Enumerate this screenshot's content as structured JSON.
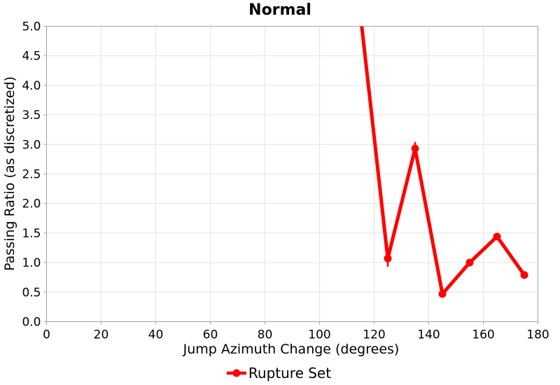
{
  "chart_data": {
    "type": "line",
    "title": "Normal",
    "xlabel": "Jump Azimuth Change (degrees)",
    "ylabel": "Passing Ratio (as discretized)",
    "xlim": [
      0,
      180
    ],
    "ylim": [
      0,
      5
    ],
    "x_ticks": [
      "0",
      "20",
      "40",
      "60",
      "80",
      "100",
      "120",
      "140",
      "160",
      "180"
    ],
    "y_ticks": [
      "0.0",
      "0.5",
      "1.0",
      "1.5",
      "2.0",
      "2.5",
      "3.0",
      "3.5",
      "4.0",
      "4.5",
      "5.0"
    ],
    "grid": true,
    "legend_position": "bottom-center",
    "series": [
      {
        "name": "Rupture Set",
        "color": "#ff0000",
        "marker": "circle",
        "points": [
          {
            "x": 115,
            "y": 5.19,
            "clipped": true
          },
          {
            "x": 125,
            "y": 1.07,
            "err_low": 0.94
          },
          {
            "x": 135,
            "y": 2.93,
            "err_high": 3.03
          },
          {
            "x": 145,
            "y": 0.47
          },
          {
            "x": 155,
            "y": 1.0
          },
          {
            "x": 165,
            "y": 1.44
          },
          {
            "x": 175,
            "y": 0.79
          }
        ]
      }
    ]
  },
  "colors": {
    "series": "#ff0000",
    "grid": "#e4e4e4",
    "axis": "#a3a3a3",
    "text": "#000000",
    "background": "#ffffff"
  }
}
